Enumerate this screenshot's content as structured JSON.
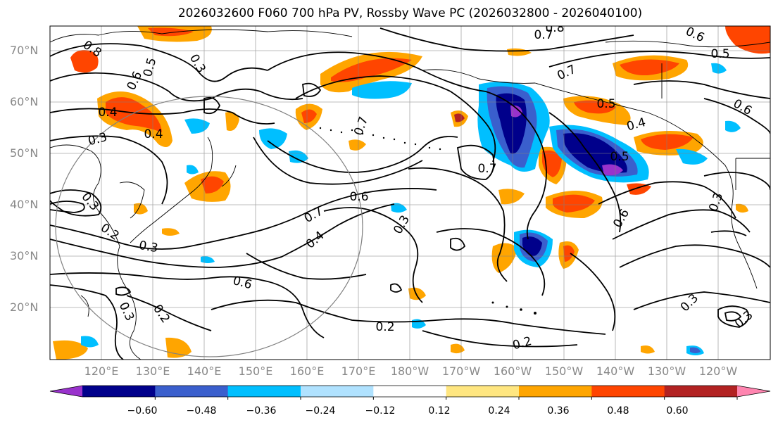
{
  "title": "2026032600 F060 700 hPa PV, Rossby Wave PC (2026032800 - 2026040100)",
  "latitude_labels": [
    "70°N",
    "60°N",
    "50°N",
    "40°N",
    "30°N",
    "20°N"
  ],
  "longitude_labels": [
    "120°E",
    "130°E",
    "140°E",
    "150°E",
    "160°E",
    "170°E",
    "180°W",
    "170°W",
    "160°W",
    "150°W",
    "140°W",
    "130°W",
    "120°W"
  ],
  "colorbar": {
    "ticks": [
      "−0.60",
      "−0.48",
      "−0.36",
      "−0.24",
      "−0.12",
      "0.12",
      "0.24",
      "0.36",
      "0.48",
      "0.60"
    ],
    "colors": [
      "#9932cc",
      "#00008b",
      "#3a5fcd",
      "#00bfff",
      "#b0e2ff",
      "#ffffff",
      "#ffe680",
      "#ffa500",
      "#ff4500",
      "#b22222",
      "#ff85b0"
    ]
  },
  "contour_labels": [
    "0.8",
    "0.5",
    "0.6",
    "0.3",
    "0.4",
    "0.4",
    "0.3",
    "0.3",
    "0.2",
    "0.3",
    "0.2",
    "0.3",
    "0.7",
    "0.7",
    "0.6",
    "0.4",
    "0.6",
    "0.3",
    "0.2",
    "0.2",
    "0.7",
    "0.8",
    "0.7",
    "0.5",
    "0.6",
    "0.4",
    "0.5",
    "0.6",
    "0.5",
    "0.7",
    "0.6",
    "0.3",
    "0.3",
    "0.3"
  ]
}
